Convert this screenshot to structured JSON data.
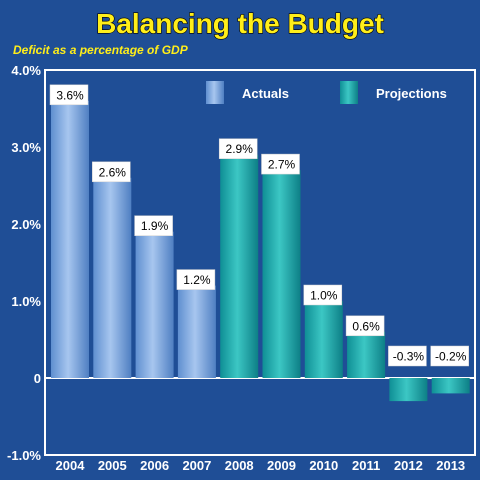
{
  "chart_data": {
    "type": "bar",
    "title": "Balancing the Budget",
    "subtitle": "Deficit as a percentage of GDP",
    "categories": [
      "2004",
      "2005",
      "2006",
      "2007",
      "2008",
      "2009",
      "2010",
      "2011",
      "2012",
      "2013"
    ],
    "values": [
      3.6,
      2.6,
      1.9,
      1.2,
      2.9,
      2.7,
      1.0,
      0.6,
      -0.3,
      -0.2
    ],
    "data_labels": [
      "3.6%",
      "2.6%",
      "1.9%",
      "1.2%",
      "2.9%",
      "2.7%",
      "1.0%",
      "0.6%",
      "-0.3%",
      "-0.2%"
    ],
    "series": [
      {
        "name": "Actuals",
        "categories": [
          "2004",
          "2005",
          "2006",
          "2007"
        ],
        "color": "#7aa6dd"
      },
      {
        "name": "Projections",
        "categories": [
          "2008",
          "2009",
          "2010",
          "2011",
          "2012",
          "2013"
        ],
        "color": "#1aa8ac"
      }
    ],
    "ylim": [
      -1.0,
      4.0
    ],
    "yticks": [
      4.0,
      3.0,
      2.0,
      1.0,
      0,
      -1.0
    ],
    "ytick_labels": [
      "4.0%",
      "3.0%",
      "2.0%",
      "1.0%",
      "0",
      "-1.0%"
    ],
    "legend_position": "top-right",
    "xlabel": "",
    "ylabel": "",
    "grid": false,
    "colors": {
      "background": "#1f4e96",
      "title": "#ffee1a",
      "axis": "#ffffff",
      "actuals": "#7aa6dd",
      "projections": "#1aa8ac"
    }
  }
}
